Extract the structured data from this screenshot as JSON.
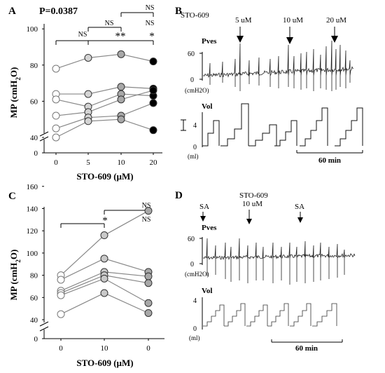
{
  "chart_data": [
    {
      "panel": "A",
      "type": "scatter",
      "annotation": "P=0.0387",
      "xlabel": "STO-609 (µM)",
      "ylabel": "MP (cmH2O)",
      "ylabel_parts": {
        "pre": "MP (cmH",
        "sub": "2",
        "post": "O)"
      },
      "x_ticks": [
        "0",
        "5",
        "10",
        "20"
      ],
      "y_ticks": [
        0,
        40,
        60,
        80,
        100
      ],
      "ylim": [
        0,
        100
      ],
      "axis_break": true,
      "significance": [
        {
          "from": "0",
          "to": "5",
          "label": "NS"
        },
        {
          "from": "0",
          "to": "10",
          "label": "**"
        },
        {
          "from": "0",
          "to": "20",
          "label": "*"
        },
        {
          "from": "5",
          "to": "10",
          "label": "NS"
        },
        {
          "from": "5",
          "to": "20",
          "label": "NS"
        },
        {
          "from": "10",
          "to": "20",
          "label": "NS"
        }
      ],
      "series": [
        {
          "values": [
            78,
            84,
            86,
            82
          ]
        },
        {
          "values": [
            64,
            64,
            68,
            67
          ]
        },
        {
          "values": [
            61,
            57,
            64,
            63
          ]
        },
        {
          "values": [
            52,
            54,
            61,
            66
          ]
        },
        {
          "values": [
            45,
            51,
            52,
            59
          ]
        },
        {
          "values": [
            40,
            49,
            50,
            44
          ]
        }
      ]
    },
    {
      "panel": "B",
      "type": "line",
      "title": "STO-609",
      "dose_labels": [
        "5 uM",
        "10 uM",
        "20 uM"
      ],
      "pves_label": "Pves",
      "pves_ticks": [
        "60",
        "0"
      ],
      "pves_unit": "(cmH2O)",
      "vol_label": "Vol",
      "vol_ticks": [
        "4",
        "0"
      ],
      "vol_unit": "(ml)",
      "scalebar": "60 min"
    },
    {
      "panel": "C",
      "type": "scatter",
      "xlabel": "STO-609 (µM)",
      "ylabel": "MP (cmH2O)",
      "ylabel_parts": {
        "pre": "MP (cmH",
        "sub": "2",
        "post": "O)"
      },
      "x_ticks": [
        "0",
        "10",
        "0"
      ],
      "y_ticks": [
        0,
        40,
        60,
        80,
        100,
        120,
        140,
        160
      ],
      "ylim": [
        0,
        160
      ],
      "axis_break": true,
      "significance": [
        {
          "from": "0",
          "to": "10",
          "label": "*"
        },
        {
          "from": "10",
          "to": "0",
          "label": "NS"
        },
        {
          "from": "0",
          "to": "0",
          "label": "NS"
        }
      ],
      "series": [
        {
          "values": [
            80,
            116,
            138
          ]
        },
        {
          "values": [
            76,
            95,
            83
          ]
        },
        {
          "values": [
            66,
            83,
            79
          ]
        },
        {
          "values": [
            64,
            80,
            73
          ]
        },
        {
          "values": [
            62,
            77,
            55
          ]
        },
        {
          "values": [
            45,
            64,
            46
          ]
        }
      ]
    },
    {
      "panel": "D",
      "type": "line",
      "markers": [
        "SA",
        "STO-609",
        "SA"
      ],
      "marker_sub": "10 uM",
      "pves_label": "Pves",
      "pves_ticks": [
        "60",
        "0"
      ],
      "pves_unit": "(cmH2O)",
      "vol_label": "Vol",
      "vol_ticks": [
        "4",
        "0"
      ],
      "vol_unit": "(ml)",
      "scalebar": "60 min"
    }
  ]
}
